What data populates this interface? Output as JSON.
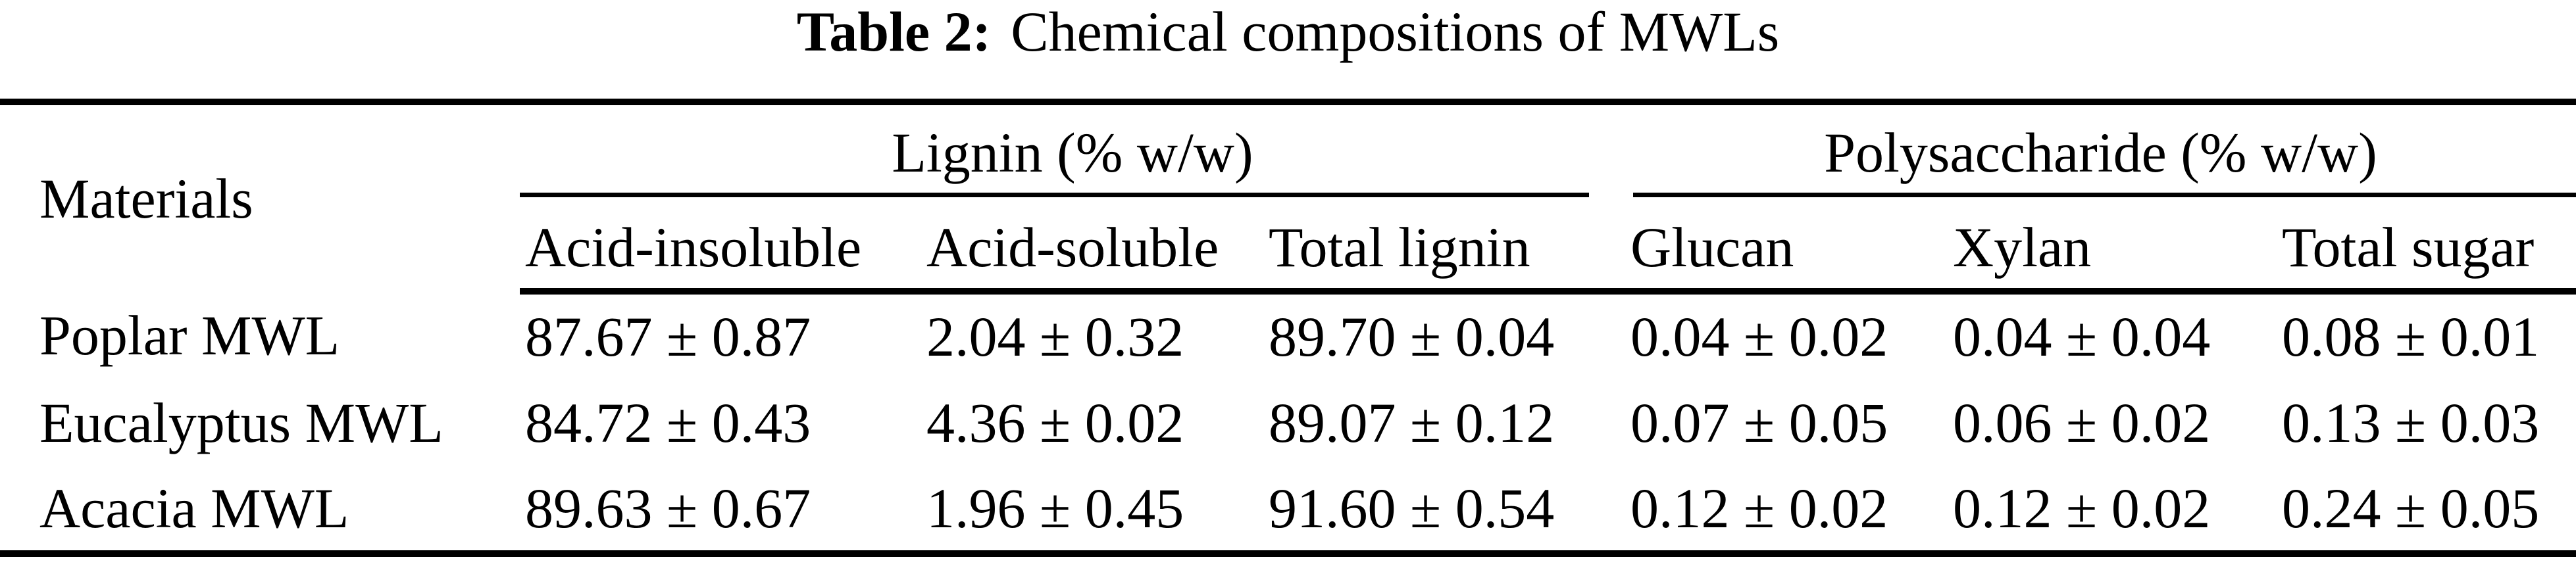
{
  "title": {
    "label": "Table 2:",
    "text": "Chemical compositions of MWLs"
  },
  "table": {
    "materials_header": "Materials",
    "groups": [
      {
        "label": "Lignin (% w/w)",
        "columns": [
          "Acid-insoluble",
          "Acid-soluble",
          "Total lignin"
        ]
      },
      {
        "label": "Polysaccharide (% w/w)",
        "columns": [
          "Glucan",
          "Xylan",
          "Total sugar"
        ]
      }
    ],
    "rows": [
      {
        "material": "Poplar MWL",
        "values": [
          "87.67 ± 0.87",
          "2.04 ± 0.32",
          "89.70 ± 0.04",
          "0.04 ± 0.02",
          "0.04 ± 0.04",
          "0.08 ± 0.01"
        ]
      },
      {
        "material": "Eucalyptus MWL",
        "values": [
          "84.72 ± 0.43",
          "4.36 ± 0.02",
          "89.07 ± 0.12",
          "0.07 ± 0.05",
          "0.06 ± 0.02",
          "0.13 ± 0.03"
        ]
      },
      {
        "material": "Acacia MWL",
        "values": [
          "89.63 ± 0.67",
          "1.96 ± 0.45",
          "91.60 ± 0.54",
          "0.12 ± 0.02",
          "0.12 ± 0.02",
          "0.24 ± 0.05"
        ]
      }
    ]
  }
}
